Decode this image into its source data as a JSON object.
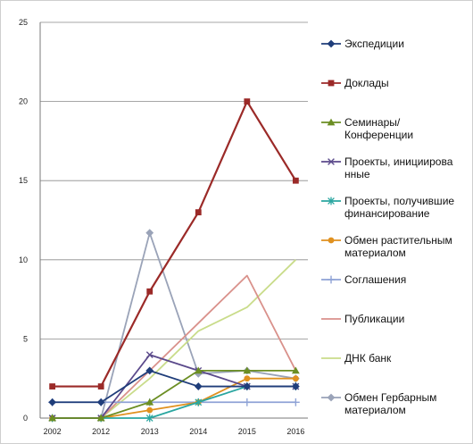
{
  "chart_data": {
    "type": "line",
    "categories": [
      "2002",
      "2012",
      "2013",
      "2014",
      "2015",
      "2016"
    ],
    "ylim": [
      0,
      25
    ],
    "yticks": [
      0,
      5,
      10,
      15,
      20,
      25
    ],
    "grid": true,
    "legend_position": "right",
    "series": [
      {
        "name": "Экспедиции",
        "name_lines": [
          "Экспедиции"
        ],
        "color": "#1f3d7a",
        "marker": "diamond",
        "values": [
          1,
          1,
          3,
          2,
          2,
          2
        ]
      },
      {
        "name": "Доклады",
        "name_lines": [
          "Доклады"
        ],
        "color": "#9b2a28",
        "marker": "square",
        "values": [
          2,
          2,
          8,
          13,
          20,
          15
        ]
      },
      {
        "name": "Семинары/ Конференции",
        "name_lines": [
          "Семинары/",
          "Конференции"
        ],
        "color": "#6b8e23",
        "marker": "triangle",
        "values": [
          0,
          0,
          1,
          3,
          3,
          3
        ]
      },
      {
        "name": "Проекты, инициированные",
        "name_lines": [
          "Проекты, инициирова",
          "нные"
        ],
        "color": "#5b4a8b",
        "marker": "x",
        "values": [
          0,
          0,
          4,
          3,
          2,
          2
        ]
      },
      {
        "name": "Проекты, получившие финансирование",
        "name_lines": [
          "Проекты, получившие",
          "финансирование"
        ],
        "color": "#2aa6a0",
        "marker": "star",
        "values": [
          0,
          0,
          0,
          1,
          2,
          2
        ]
      },
      {
        "name": "Обмен растительным материалом",
        "name_lines": [
          "Обмен растительным",
          "материалом"
        ],
        "color": "#e0911f",
        "marker": "circle",
        "values": [
          0,
          0,
          0.5,
          1,
          2.5,
          2.5
        ]
      },
      {
        "name": "Соглашения",
        "name_lines": [
          "Соглашения"
        ],
        "color": "#8fa3d6",
        "marker": "plus",
        "values": [
          1,
          1,
          1,
          1,
          1,
          1
        ]
      },
      {
        "name": "Публикации",
        "name_lines": [
          "Публикации"
        ],
        "color": "#d9918b",
        "marker": "none",
        "values": [
          0,
          0,
          3,
          6,
          9,
          3
        ]
      },
      {
        "name": "ДНК банк",
        "name_lines": [
          "ДНК банк"
        ],
        "color": "#c9dc8a",
        "marker": "none",
        "values": [
          0,
          0,
          2.5,
          5.5,
          7,
          10
        ]
      },
      {
        "name": "Обмен Гербарным материалом",
        "name_lines": [
          "Обмен Гербарным",
          "материалом"
        ],
        "color": "#9aa3b8",
        "marker": "diamond",
        "values": [
          0,
          0,
          11.7,
          2.8,
          3,
          2.5
        ]
      }
    ]
  }
}
